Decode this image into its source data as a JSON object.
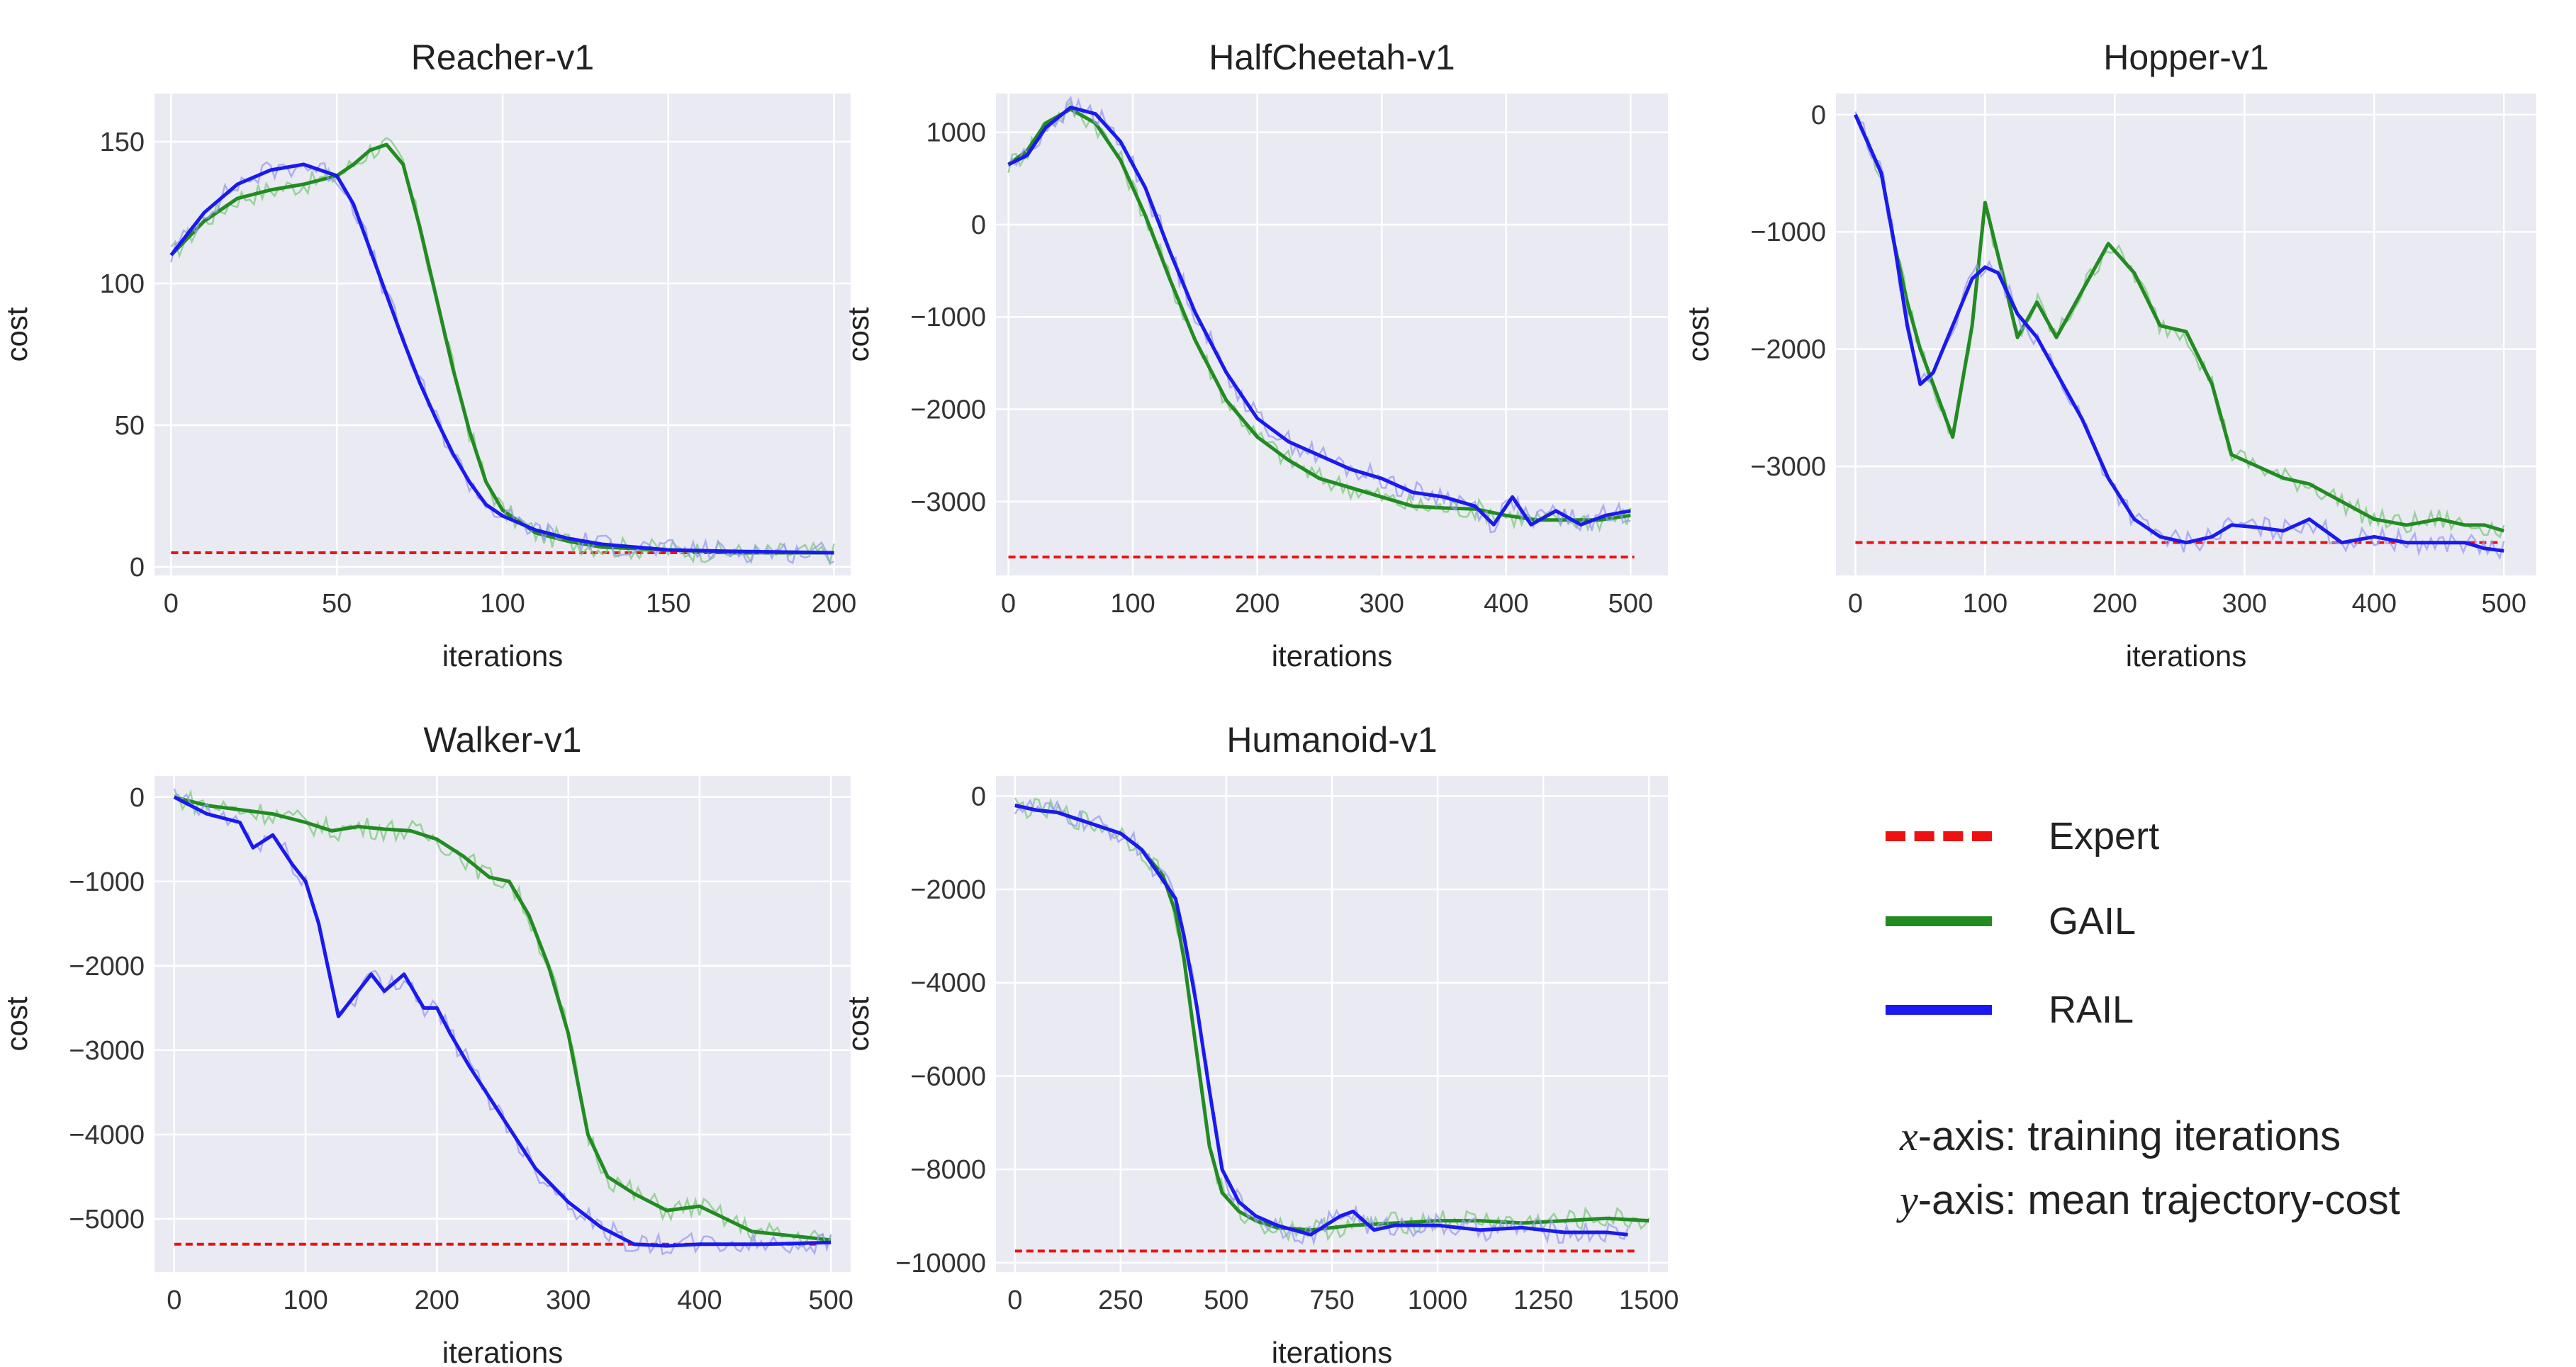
{
  "colors": {
    "expert": "#ee1111",
    "gail": "#228b22",
    "rail": "#1a1aee",
    "gail_raw": "#7ec87e",
    "rail_raw": "#9a9af0",
    "panel_bg": "#eaeaf2",
    "grid": "#ffffff"
  },
  "legend": {
    "expert_label": "Expert",
    "gail_label": "GAIL",
    "rail_label": "RAIL"
  },
  "notes": {
    "x_var": "x",
    "x_text": "-axis: training iterations",
    "y_var": "y",
    "y_text": "-axis: mean trajectory-cost"
  },
  "chart_data": [
    {
      "type": "line",
      "title": "Reacher-v1",
      "xlabel": "iterations",
      "ylabel": "cost",
      "xlim": [
        -5,
        205
      ],
      "ylim": [
        -3,
        167
      ],
      "xticks": [
        0,
        50,
        100,
        150,
        200
      ],
      "yticks": [
        0,
        50,
        100,
        150
      ],
      "expert": 5,
      "series": [
        {
          "name": "GAIL",
          "x": [
            0,
            10,
            20,
            30,
            40,
            50,
            55,
            60,
            65,
            70,
            75,
            80,
            85,
            90,
            95,
            100,
            110,
            120,
            130,
            150,
            170,
            200
          ],
          "y": [
            110,
            122,
            130,
            133,
            135,
            138,
            142,
            147,
            149,
            142,
            120,
            95,
            70,
            48,
            30,
            20,
            12,
            9,
            7,
            6,
            5,
            5
          ]
        },
        {
          "name": "RAIL",
          "x": [
            0,
            10,
            20,
            30,
            40,
            50,
            55,
            60,
            65,
            70,
            75,
            80,
            85,
            90,
            95,
            100,
            110,
            120,
            130,
            150,
            170,
            200
          ],
          "y": [
            110,
            125,
            135,
            140,
            142,
            138,
            128,
            112,
            96,
            80,
            65,
            52,
            40,
            30,
            22,
            18,
            13,
            10,
            8,
            6,
            5.5,
            5
          ]
        }
      ]
    },
    {
      "type": "line",
      "title": "HalfCheetah-v1",
      "xlabel": "iterations",
      "ylabel": "cost",
      "xlim": [
        -10,
        530
      ],
      "ylim": [
        -3800,
        1420
      ],
      "xticks": [
        0,
        100,
        200,
        300,
        400,
        500
      ],
      "yticks": [
        -3000,
        -2000,
        -1000,
        0,
        1000
      ],
      "expert": -3600,
      "series": [
        {
          "name": "GAIL",
          "x": [
            0,
            15,
            30,
            50,
            70,
            90,
            110,
            130,
            150,
            175,
            200,
            225,
            250,
            275,
            300,
            325,
            350,
            375,
            400,
            425,
            450,
            475,
            500
          ],
          "y": [
            650,
            800,
            1100,
            1250,
            1100,
            700,
            100,
            -600,
            -1250,
            -1900,
            -2300,
            -2550,
            -2750,
            -2850,
            -2950,
            -3050,
            -3070,
            -3080,
            -3150,
            -3200,
            -3200,
            -3200,
            -3150
          ]
        },
        {
          "name": "RAIL",
          "x": [
            0,
            15,
            30,
            50,
            70,
            90,
            110,
            130,
            150,
            175,
            200,
            225,
            250,
            275,
            300,
            325,
            350,
            375,
            390,
            405,
            420,
            440,
            460,
            480,
            500
          ],
          "y": [
            650,
            750,
            1050,
            1270,
            1200,
            900,
            400,
            -300,
            -950,
            -1600,
            -2100,
            -2350,
            -2500,
            -2650,
            -2750,
            -2900,
            -2950,
            -3050,
            -3250,
            -2950,
            -3250,
            -3100,
            -3250,
            -3150,
            -3100
          ]
        }
      ]
    },
    {
      "type": "line",
      "title": "Hopper-v1",
      "xlabel": "iterations",
      "ylabel": "cost",
      "xlim": [
        -15,
        525
      ],
      "ylim": [
        -3930,
        180
      ],
      "xticks": [
        0,
        100,
        200,
        300,
        400,
        500
      ],
      "yticks": [
        -3000,
        -2000,
        -1000,
        0
      ],
      "expert": -3650,
      "series": [
        {
          "name": "GAIL",
          "x": [
            0,
            10,
            20,
            30,
            40,
            50,
            60,
            75,
            90,
            100,
            110,
            125,
            140,
            155,
            175,
            195,
            215,
            235,
            255,
            275,
            290,
            310,
            330,
            350,
            375,
            400,
            425,
            450,
            470,
            485,
            500
          ],
          "y": [
            0,
            -250,
            -500,
            -1100,
            -1600,
            -2000,
            -2300,
            -2750,
            -1800,
            -750,
            -1200,
            -1900,
            -1600,
            -1900,
            -1500,
            -1100,
            -1350,
            -1800,
            -1850,
            -2300,
            -2900,
            -3000,
            -3100,
            -3150,
            -3300,
            -3450,
            -3500,
            -3450,
            -3500,
            -3500,
            -3550
          ]
        },
        {
          "name": "RAIL",
          "x": [
            0,
            10,
            20,
            30,
            40,
            50,
            60,
            75,
            90,
            100,
            110,
            125,
            140,
            155,
            175,
            195,
            215,
            235,
            255,
            275,
            290,
            310,
            330,
            350,
            375,
            400,
            425,
            450,
            470,
            485,
            500
          ],
          "y": [
            0,
            -250,
            -500,
            -1100,
            -1800,
            -2300,
            -2200,
            -1800,
            -1400,
            -1300,
            -1350,
            -1700,
            -1900,
            -2200,
            -2600,
            -3100,
            -3450,
            -3600,
            -3650,
            -3600,
            -3500,
            -3520,
            -3550,
            -3450,
            -3650,
            -3600,
            -3650,
            -3650,
            -3650,
            -3700,
            -3720
          ]
        }
      ]
    },
    {
      "type": "line",
      "title": "Walker-v1",
      "xlabel": "iterations",
      "ylabel": "cost",
      "xlim": [
        -15,
        515
      ],
      "ylim": [
        -5630,
        250
      ],
      "xticks": [
        0,
        100,
        200,
        300,
        400,
        500
      ],
      "yticks": [
        -5000,
        -4000,
        -3000,
        -2000,
        -1000,
        0
      ],
      "expert": -5300,
      "series": [
        {
          "name": "GAIL",
          "x": [
            0,
            25,
            50,
            75,
            100,
            120,
            140,
            160,
            180,
            200,
            220,
            240,
            255,
            270,
            285,
            300,
            315,
            330,
            350,
            375,
            400,
            420,
            440,
            470,
            500
          ],
          "y": [
            0,
            -100,
            -150,
            -200,
            -300,
            -400,
            -350,
            -380,
            -400,
            -500,
            -700,
            -950,
            -1000,
            -1400,
            -2000,
            -2800,
            -4000,
            -4500,
            -4700,
            -4900,
            -4850,
            -5000,
            -5150,
            -5200,
            -5250
          ]
        },
        {
          "name": "RAIL",
          "x": [
            0,
            25,
            50,
            60,
            75,
            90,
            100,
            110,
            125,
            135,
            150,
            160,
            175,
            190,
            200,
            210,
            225,
            250,
            275,
            300,
            325,
            350,
            375,
            400,
            450,
            500
          ],
          "y": [
            0,
            -200,
            -300,
            -600,
            -450,
            -800,
            -1000,
            -1500,
            -2600,
            -2400,
            -2100,
            -2300,
            -2100,
            -2500,
            -2500,
            -2800,
            -3200,
            -3800,
            -4400,
            -4800,
            -5100,
            -5300,
            -5320,
            -5300,
            -5300,
            -5280
          ]
        }
      ]
    },
    {
      "type": "line",
      "title": "Humanoid-v1",
      "xlabel": "iterations",
      "ylabel": "cost",
      "xlim": [
        -45,
        1545
      ],
      "ylim": [
        -10200,
        430
      ],
      "xticks": [
        0,
        250,
        500,
        750,
        1000,
        1250,
        1500
      ],
      "yticks": [
        -10000,
        -8000,
        -6000,
        -4000,
        -2000,
        0
      ],
      "expert": -9750,
      "series": [
        {
          "name": "GAIL",
          "x": [
            0,
            50,
            100,
            150,
            200,
            250,
            300,
            350,
            380,
            400,
            430,
            460,
            490,
            530,
            570,
            620,
            700,
            800,
            900,
            1000,
            1100,
            1200,
            1300,
            1400,
            1500
          ],
          "y": [
            -200,
            -300,
            -350,
            -500,
            -650,
            -800,
            -1150,
            -1700,
            -2500,
            -3500,
            -5500,
            -7500,
            -8500,
            -8900,
            -9100,
            -9250,
            -9300,
            -9200,
            -9150,
            -9100,
            -9100,
            -9150,
            -9100,
            -9050,
            -9100
          ]
        },
        {
          "name": "RAIL",
          "x": [
            0,
            50,
            100,
            150,
            200,
            250,
            300,
            350,
            380,
            400,
            430,
            460,
            490,
            530,
            570,
            620,
            700,
            770,
            800,
            850,
            900,
            1000,
            1100,
            1200,
            1300,
            1400,
            1450
          ],
          "y": [
            -200,
            -300,
            -350,
            -500,
            -650,
            -800,
            -1150,
            -1800,
            -2200,
            -3000,
            -4500,
            -6300,
            -8000,
            -8700,
            -9000,
            -9200,
            -9400,
            -9000,
            -8900,
            -9300,
            -9200,
            -9200,
            -9300,
            -9250,
            -9350,
            -9350,
            -9400
          ]
        }
      ]
    }
  ]
}
